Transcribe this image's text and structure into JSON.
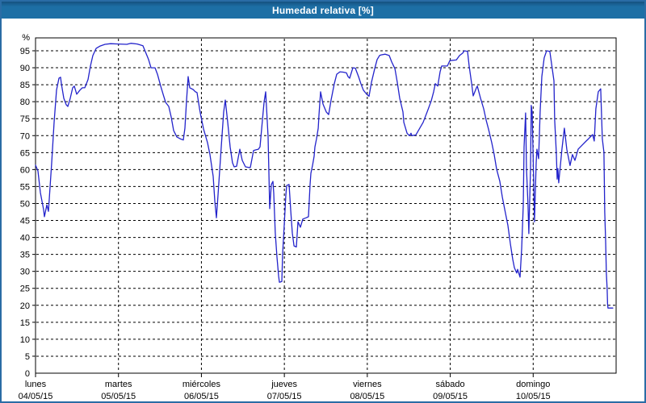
{
  "window": {
    "title": "Humedad relativa [%]"
  },
  "colors": {
    "title_bar": "#1d6fa5",
    "title_bar_edge": "#15517f",
    "frame_border": "#2a6ca5",
    "line": "#2323cb",
    "grid": "#000000",
    "plot_background": "#ffffff",
    "text": "#000000"
  },
  "chart_data": {
    "type": "line",
    "title": "Humedad relativa [%]",
    "ylabel": "%",
    "xlabel": "",
    "x_unit": "days since lunes 04/05/15 00:00",
    "xlim": [
      0,
      7
    ],
    "ylim": [
      0,
      98.8
    ],
    "grid": "dashed",
    "legend_position": "none",
    "y_ticks": [
      95,
      90,
      85,
      80,
      75,
      70,
      65,
      60,
      55,
      50,
      45,
      40,
      35,
      30,
      25,
      20,
      15,
      10,
      5
    ],
    "y_baseline_label": "0",
    "y_unit_label": "%",
    "x_categories": [
      {
        "name": "lunes",
        "date": "04/05/15"
      },
      {
        "name": "martes",
        "date": "05/05/15"
      },
      {
        "name": "miércoles",
        "date": "06/05/15"
      },
      {
        "name": "jueves",
        "date": "07/05/15"
      },
      {
        "name": "viernes",
        "date": "08/05/15"
      },
      {
        "name": "sábado",
        "date": "09/05/15"
      },
      {
        "name": "domingo",
        "date": "10/05/15"
      }
    ],
    "series": [
      {
        "name": "Humedad relativa",
        "color": "#2323cb",
        "points": [
          [
            0.0,
            61.3
          ],
          [
            0.029,
            59.6
          ],
          [
            0.058,
            53.2
          ],
          [
            0.097,
            48.2
          ],
          [
            0.107,
            46.1
          ],
          [
            0.136,
            49.6
          ],
          [
            0.156,
            47.7
          ],
          [
            0.195,
            62.0
          ],
          [
            0.224,
            73.9
          ],
          [
            0.253,
            83.4
          ],
          [
            0.282,
            86.9
          ],
          [
            0.302,
            87.2
          ],
          [
            0.312,
            85.3
          ],
          [
            0.341,
            81.0
          ],
          [
            0.37,
            79.1
          ],
          [
            0.389,
            78.6
          ],
          [
            0.419,
            81.0
          ],
          [
            0.448,
            84.1
          ],
          [
            0.467,
            84.6
          ],
          [
            0.497,
            82.2
          ],
          [
            0.535,
            83.4
          ],
          [
            0.565,
            84.1
          ],
          [
            0.594,
            84.1
          ],
          [
            0.633,
            86.5
          ],
          [
            0.662,
            90.5
          ],
          [
            0.691,
            93.6
          ],
          [
            0.73,
            95.7
          ],
          [
            0.779,
            96.4
          ],
          [
            0.837,
            96.9
          ],
          [
            0.905,
            97.1
          ],
          [
            1.003,
            97.0
          ],
          [
            1.1,
            96.9
          ],
          [
            1.149,
            97.2
          ],
          [
            1.227,
            97.0
          ],
          [
            1.295,
            96.5
          ],
          [
            1.363,
            92.4
          ],
          [
            1.392,
            90.0
          ],
          [
            1.441,
            90.0
          ],
          [
            1.47,
            88.1
          ],
          [
            1.509,
            84.6
          ],
          [
            1.538,
            82.2
          ],
          [
            1.568,
            79.8
          ],
          [
            1.606,
            78.6
          ],
          [
            1.636,
            75.5
          ],
          [
            1.665,
            71.5
          ],
          [
            1.704,
            69.6
          ],
          [
            1.743,
            69.1
          ],
          [
            1.782,
            68.7
          ],
          [
            1.801,
            72.2
          ],
          [
            1.821,
            80.3
          ],
          [
            1.84,
            87.4
          ],
          [
            1.86,
            84.1
          ],
          [
            1.899,
            83.6
          ],
          [
            1.928,
            82.9
          ],
          [
            1.947,
            82.7
          ],
          [
            1.976,
            78.1
          ],
          [
            1.996,
            75.5
          ],
          [
            2.025,
            72.0
          ],
          [
            2.074,
            67.9
          ],
          [
            2.103,
            64.4
          ],
          [
            2.142,
            58.0
          ],
          [
            2.161,
            50.8
          ],
          [
            2.181,
            45.8
          ],
          [
            2.2,
            52.5
          ],
          [
            2.239,
            66.7
          ],
          [
            2.268,
            77.0
          ],
          [
            2.288,
            80.5
          ],
          [
            2.317,
            73.9
          ],
          [
            2.346,
            66.7
          ],
          [
            2.375,
            62.0
          ],
          [
            2.395,
            60.8
          ],
          [
            2.424,
            61.0
          ],
          [
            2.463,
            66.0
          ],
          [
            2.492,
            62.7
          ],
          [
            2.531,
            60.8
          ],
          [
            2.57,
            60.6
          ],
          [
            2.59,
            60.6
          ],
          [
            2.629,
            65.6
          ],
          [
            2.658,
            65.8
          ],
          [
            2.687,
            66.0
          ],
          [
            2.707,
            66.7
          ],
          [
            2.736,
            74.6
          ],
          [
            2.755,
            79.8
          ],
          [
            2.775,
            82.9
          ],
          [
            2.784,
            78.6
          ],
          [
            2.804,
            69.6
          ],
          [
            2.823,
            48.5
          ],
          [
            2.843,
            55.6
          ],
          [
            2.862,
            56.5
          ],
          [
            2.872,
            53.0
          ],
          [
            2.891,
            41.3
          ],
          [
            2.911,
            34.2
          ],
          [
            2.93,
            28.7
          ],
          [
            2.94,
            26.8
          ],
          [
            2.969,
            27.0
          ],
          [
            2.979,
            35.2
          ],
          [
            2.999,
            43.7
          ],
          [
            3.018,
            52.5
          ],
          [
            3.028,
            55.3
          ],
          [
            3.057,
            55.6
          ],
          [
            3.077,
            47.7
          ],
          [
            3.096,
            41.3
          ],
          [
            3.116,
            37.5
          ],
          [
            3.145,
            37.2
          ],
          [
            3.164,
            44.6
          ],
          [
            3.193,
            43.0
          ],
          [
            3.223,
            45.4
          ],
          [
            3.262,
            45.8
          ],
          [
            3.291,
            46.1
          ],
          [
            3.31,
            55.6
          ],
          [
            3.32,
            58.9
          ],
          [
            3.34,
            61.3
          ],
          [
            3.359,
            63.9
          ],
          [
            3.369,
            66.7
          ],
          [
            3.388,
            69.1
          ],
          [
            3.408,
            72.2
          ],
          [
            3.417,
            76.0
          ],
          [
            3.437,
            82.9
          ],
          [
            3.466,
            79.3
          ],
          [
            3.505,
            77.0
          ],
          [
            3.534,
            76.2
          ],
          [
            3.563,
            80.5
          ],
          [
            3.602,
            85.3
          ],
          [
            3.631,
            88.1
          ],
          [
            3.67,
            88.8
          ],
          [
            3.709,
            88.7
          ],
          [
            3.748,
            88.5
          ],
          [
            3.768,
            87.4
          ],
          [
            3.787,
            86.9
          ],
          [
            3.826,
            90.0
          ],
          [
            3.855,
            89.9
          ],
          [
            3.894,
            87.4
          ],
          [
            3.923,
            85.3
          ],
          [
            3.953,
            83.4
          ],
          [
            3.992,
            82.2
          ],
          [
            4.021,
            81.6
          ],
          [
            4.05,
            85.7
          ],
          [
            4.089,
            89.7
          ],
          [
            4.118,
            92.4
          ],
          [
            4.147,
            93.6
          ],
          [
            4.167,
            93.8
          ],
          [
            4.216,
            94.0
          ],
          [
            4.264,
            93.6
          ],
          [
            4.294,
            91.7
          ],
          [
            4.333,
            89.7
          ],
          [
            4.362,
            85.7
          ],
          [
            4.391,
            81.0
          ],
          [
            4.43,
            77.0
          ],
          [
            4.44,
            73.9
          ],
          [
            4.479,
            70.7
          ],
          [
            4.508,
            70.0
          ],
          [
            4.527,
            70.7
          ],
          [
            4.537,
            70.0
          ],
          [
            4.586,
            70.2
          ],
          [
            4.625,
            71.9
          ],
          [
            4.673,
            73.9
          ],
          [
            4.722,
            77.0
          ],
          [
            4.771,
            80.2
          ],
          [
            4.8,
            82.9
          ],
          [
            4.82,
            85.3
          ],
          [
            4.849,
            84.6
          ],
          [
            4.878,
            88.8
          ],
          [
            4.897,
            90.5
          ],
          [
            4.965,
            90.5
          ],
          [
            4.995,
            92.1
          ],
          [
            5.073,
            92.3
          ],
          [
            5.112,
            93.6
          ],
          [
            5.15,
            94.3
          ],
          [
            5.17,
            95.0
          ],
          [
            5.209,
            94.8
          ],
          [
            5.228,
            90.5
          ],
          [
            5.258,
            85.3
          ],
          [
            5.277,
            81.7
          ],
          [
            5.316,
            84.1
          ],
          [
            5.326,
            84.6
          ],
          [
            5.365,
            81.0
          ],
          [
            5.403,
            77.9
          ],
          [
            5.433,
            74.6
          ],
          [
            5.462,
            71.9
          ],
          [
            5.501,
            67.9
          ],
          [
            5.53,
            64.4
          ],
          [
            5.559,
            60.1
          ],
          [
            5.598,
            56.5
          ],
          [
            5.627,
            52.0
          ],
          [
            5.657,
            48.2
          ],
          [
            5.695,
            43.5
          ],
          [
            5.725,
            38.2
          ],
          [
            5.754,
            33.5
          ],
          [
            5.773,
            31.1
          ],
          [
            5.802,
            29.5
          ],
          [
            5.812,
            30.6
          ],
          [
            5.841,
            28.3
          ],
          [
            5.861,
            36.6
          ],
          [
            5.88,
            49.4
          ],
          [
            5.89,
            66.7
          ],
          [
            5.909,
            76.7
          ],
          [
            5.919,
            60.3
          ],
          [
            5.938,
            49.4
          ],
          [
            5.948,
            41.1
          ],
          [
            5.968,
            60.3
          ],
          [
            5.977,
            78.9
          ],
          [
            5.987,
            77.0
          ],
          [
            6.007,
            55.6
          ],
          [
            6.016,
            44.6
          ],
          [
            6.036,
            62.0
          ],
          [
            6.045,
            66.0
          ],
          [
            6.065,
            63.2
          ],
          [
            6.084,
            77.0
          ],
          [
            6.104,
            87.4
          ],
          [
            6.133,
            92.9
          ],
          [
            6.162,
            95.0
          ],
          [
            6.201,
            94.8
          ],
          [
            6.25,
            86.2
          ],
          [
            6.259,
            74.6
          ],
          [
            6.279,
            65.1
          ],
          [
            6.289,
            57.2
          ],
          [
            6.298,
            60.3
          ],
          [
            6.308,
            56.1
          ],
          [
            6.347,
            66.0
          ],
          [
            6.376,
            72.2
          ],
          [
            6.405,
            66.0
          ],
          [
            6.444,
            61.2
          ],
          [
            6.473,
            64.4
          ],
          [
            6.503,
            62.7
          ],
          [
            6.542,
            66.0
          ],
          [
            6.59,
            67.2
          ],
          [
            6.639,
            68.4
          ],
          [
            6.668,
            69.1
          ],
          [
            6.717,
            70.3
          ],
          [
            6.736,
            68.4
          ],
          [
            6.756,
            77.9
          ],
          [
            6.785,
            82.9
          ],
          [
            6.814,
            83.8
          ],
          [
            6.834,
            69.1
          ],
          [
            6.853,
            65.1
          ],
          [
            6.863,
            47.5
          ],
          [
            6.873,
            39.0
          ],
          [
            6.882,
            29.5
          ],
          [
            6.892,
            24.7
          ],
          [
            6.897,
            20.4
          ],
          [
            6.902,
            19.2
          ],
          [
            6.96,
            19.2
          ]
        ]
      }
    ]
  }
}
